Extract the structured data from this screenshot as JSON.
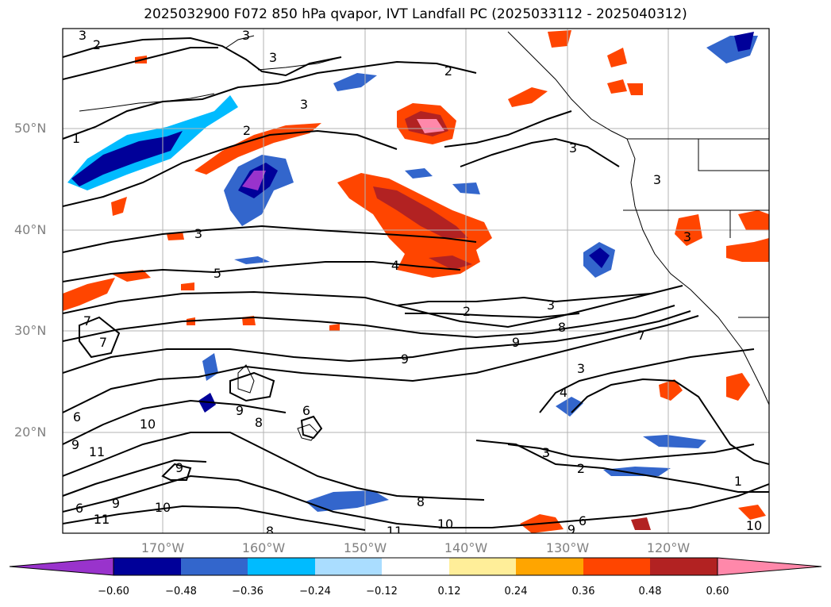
{
  "title": "2025032900 F072 850 hPa qvapor, IVT Landfall PC (2025033112 - 2025040312)",
  "map": {
    "lat_labels": [
      "50°N",
      "40°N",
      "30°N",
      "20°N"
    ],
    "lon_labels": [
      "170°W",
      "160°W",
      "150°W",
      "140°W",
      "130°W",
      "120°W"
    ],
    "contour_labels": [
      "3",
      "2",
      "3",
      "3",
      "3",
      "2",
      "1",
      "3",
      "3",
      "2",
      "3",
      "3",
      "5",
      "4",
      "3",
      "2",
      "3",
      "8",
      "7",
      "9",
      "9",
      "3",
      "4",
      "7",
      "7",
      "6",
      "10",
      "11",
      "9",
      "6",
      "11",
      "9",
      "10",
      "11",
      "9",
      "9",
      "8",
      "6",
      "8",
      "3",
      "2",
      "1",
      "10",
      "11",
      "8",
      "9",
      "6",
      "10"
    ]
  },
  "colorbar": {
    "ticks": [
      "−0.60",
      "−0.48",
      "−0.36",
      "−0.24",
      "−0.12",
      "0.12",
      "0.24",
      "0.36",
      "0.48",
      "0.60"
    ],
    "colors": [
      "#9933cc",
      "#000099",
      "#3366cc",
      "#00bbff",
      "#aaddff",
      "#ffffff",
      "#ffee99",
      "#ffa500",
      "#ff4500",
      "#b22222",
      "#ff88aa"
    ]
  }
}
